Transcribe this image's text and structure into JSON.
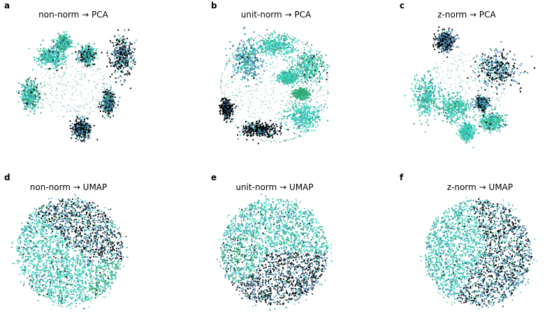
{
  "colors": {
    "black": "#000000",
    "steel_blue": "#4a82ad",
    "turquoise": "#3ed6c0",
    "green": "#33a872",
    "teal_dot": "#3a8f8c"
  },
  "chart_data": [
    {
      "type": "scatter",
      "letter": "a",
      "title": "non-norm → PCA",
      "shape": "clusters",
      "clusters": [
        {
          "cx": 48.0,
          "cy": 40.0,
          "rx": 20.0,
          "ry": 14.0,
          "mix": [
            0.05,
            0.18,
            0.6,
            0.17
          ]
        },
        {
          "cx": 66.0,
          "cy": 20.0,
          "rx": 10.0,
          "ry": 11.0,
          "mix": [
            0.05,
            0.15,
            0.5,
            0.3
          ]
        },
        {
          "cx": 100.0,
          "cy": 37.0,
          "rx": 12.0,
          "ry": 13.0,
          "mix": [
            0.25,
            0.2,
            0.45,
            0.1
          ]
        },
        {
          "cx": 149.0,
          "cy": 40.0,
          "rx": 17.0,
          "ry": 28.0,
          "mix": [
            0.5,
            0.4,
            0.05,
            0.05
          ]
        },
        {
          "cx": 18.0,
          "cy": 95.0,
          "rx": 14.0,
          "ry": 21.0,
          "mix": [
            0.05,
            0.2,
            0.45,
            0.3
          ]
        },
        {
          "cx": 91.0,
          "cy": 142.0,
          "rx": 12.0,
          "ry": 14.0,
          "mix": [
            0.6,
            0.35,
            0.05,
            0.0
          ]
        },
        {
          "cx": 130.0,
          "cy": 105.0,
          "rx": 9.0,
          "ry": 16.0,
          "mix": [
            0.35,
            0.45,
            0.1,
            0.1
          ]
        }
      ],
      "scatter": {
        "cx": 80.0,
        "cy": 85.0,
        "rx": 55.0,
        "ry": 45.0
      }
    },
    {
      "type": "scatter",
      "letter": "b",
      "title": "unit-norm → PCA",
      "shape": "sphere",
      "circle": {
        "cx": 80.0,
        "cy": 80.0,
        "r": 78.0
      },
      "clusters": [
        {
          "cx": 41.0,
          "cy": 40.0,
          "rx": 20.0,
          "ry": 28.0,
          "mix": [
            0.05,
            0.55,
            0.3,
            0.1
          ]
        },
        {
          "cx": 80.0,
          "cy": 20.0,
          "rx": 28.0,
          "ry": 14.0,
          "mix": [
            0.0,
            0.1,
            0.7,
            0.2
          ]
        },
        {
          "cx": 127.0,
          "cy": 50.0,
          "rx": 24.0,
          "ry": 22.0,
          "mix": [
            0.05,
            0.1,
            0.55,
            0.3
          ]
        },
        {
          "cx": 100.0,
          "cy": 65.0,
          "rx": 13.0,
          "ry": 9.0,
          "mix": [
            0.0,
            0.1,
            0.7,
            0.2
          ]
        },
        {
          "cx": 122.0,
          "cy": 120.0,
          "rx": 24.0,
          "ry": 20.0,
          "mix": [
            0.0,
            0.1,
            0.75,
            0.15
          ]
        },
        {
          "cx": 59.0,
          "cy": 140.0,
          "rx": 25.0,
          "ry": 11.0,
          "mix": [
            0.75,
            0.2,
            0.05,
            0.0
          ]
        },
        {
          "cx": 12.0,
          "cy": 110.0,
          "rx": 8.0,
          "ry": 13.0,
          "mix": [
            0.8,
            0.2,
            0.0,
            0.0
          ]
        },
        {
          "cx": 118.0,
          "cy": 88.0,
          "rx": 11.0,
          "ry": 7.0,
          "mix": [
            0.0,
            0.0,
            0.1,
            0.9
          ]
        }
      ]
    },
    {
      "type": "scatter",
      "letter": "c",
      "title": "z-norm → PCA",
      "shape": "clusters",
      "clusters": [
        {
          "cx": 52.0,
          "cy": 15.0,
          "rx": 14.0,
          "ry": 14.0,
          "mix": [
            0.5,
            0.45,
            0.05,
            0.0
          ]
        },
        {
          "cx": 127.0,
          "cy": 55.0,
          "rx": 32.0,
          "ry": 24.0,
          "mix": [
            0.4,
            0.45,
            0.1,
            0.05
          ]
        },
        {
          "cx": 25.0,
          "cy": 95.0,
          "rx": 17.0,
          "ry": 30.0,
          "mix": [
            0.0,
            0.2,
            0.6,
            0.2
          ]
        },
        {
          "cx": 65.0,
          "cy": 110.0,
          "rx": 23.0,
          "ry": 20.0,
          "mix": [
            0.0,
            0.15,
            0.6,
            0.25
          ]
        },
        {
          "cx": 118.0,
          "cy": 130.0,
          "rx": 16.0,
          "ry": 12.0,
          "mix": [
            0.05,
            0.1,
            0.55,
            0.3
          ]
        },
        {
          "cx": 83.0,
          "cy": 145.0,
          "rx": 10.0,
          "ry": 12.0,
          "mix": [
            0.0,
            0.1,
            0.75,
            0.15
          ]
        },
        {
          "cx": 105.0,
          "cy": 104.0,
          "rx": 9.0,
          "ry": 9.0,
          "mix": [
            0.4,
            0.45,
            0.1,
            0.05
          ]
        }
      ],
      "scatter": {
        "cx": 80.0,
        "cy": 80.0,
        "rx": 60.0,
        "ry": 50.0
      }
    },
    {
      "type": "scatter",
      "letter": "d",
      "title": "non-norm → UMAP",
      "shape": "disc",
      "circle": {
        "cx": 80.0,
        "cy": 80.0,
        "r": 78.0
      },
      "regions": [
        {
          "cx": 110.0,
          "cy": 45.0,
          "rx": 45.0,
          "ry": 45.0,
          "mix": [
            0.4,
            0.4,
            0.1,
            0.1
          ]
        },
        {
          "cx": 60.0,
          "cy": 100.0,
          "rx": 45.0,
          "ry": 45.0,
          "mix": [
            0.03,
            0.17,
            0.65,
            0.15
          ]
        },
        {
          "cx": 130.0,
          "cy": 115.0,
          "rx": 22.0,
          "ry": 22.0,
          "mix": [
            0.05,
            0.2,
            0.25,
            0.5
          ]
        }
      ]
    },
    {
      "type": "scatter",
      "letter": "e",
      "title": "unit-norm → UMAP",
      "shape": "disc",
      "circle": {
        "cx": 80.0,
        "cy": 80.0,
        "r": 78.0
      },
      "regions": [
        {
          "cx": 85.0,
          "cy": 45.0,
          "rx": 60.0,
          "ry": 40.0,
          "mix": [
            0.02,
            0.2,
            0.6,
            0.18
          ]
        },
        {
          "cx": 95.0,
          "cy": 115.0,
          "rx": 50.0,
          "ry": 35.0,
          "mix": [
            0.5,
            0.4,
            0.05,
            0.05
          ]
        },
        {
          "cx": 40.0,
          "cy": 85.0,
          "rx": 25.0,
          "ry": 30.0,
          "mix": [
            0.05,
            0.25,
            0.3,
            0.4
          ]
        }
      ]
    },
    {
      "type": "scatter",
      "letter": "f",
      "title": "z-norm → UMAP",
      "shape": "disc",
      "circle": {
        "cx": 80.0,
        "cy": 80.0,
        "r": 78.0
      },
      "regions": [
        {
          "cx": 115.0,
          "cy": 40.0,
          "rx": 40.0,
          "ry": 35.0,
          "mix": [
            0.4,
            0.35,
            0.15,
            0.1
          ]
        },
        {
          "cx": 55.0,
          "cy": 70.0,
          "rx": 40.0,
          "ry": 45.0,
          "mix": [
            0.02,
            0.18,
            0.65,
            0.15
          ]
        },
        {
          "cx": 110.0,
          "cy": 105.0,
          "rx": 45.0,
          "ry": 40.0,
          "mix": [
            0.35,
            0.45,
            0.1,
            0.1
          ]
        }
      ]
    }
  ]
}
